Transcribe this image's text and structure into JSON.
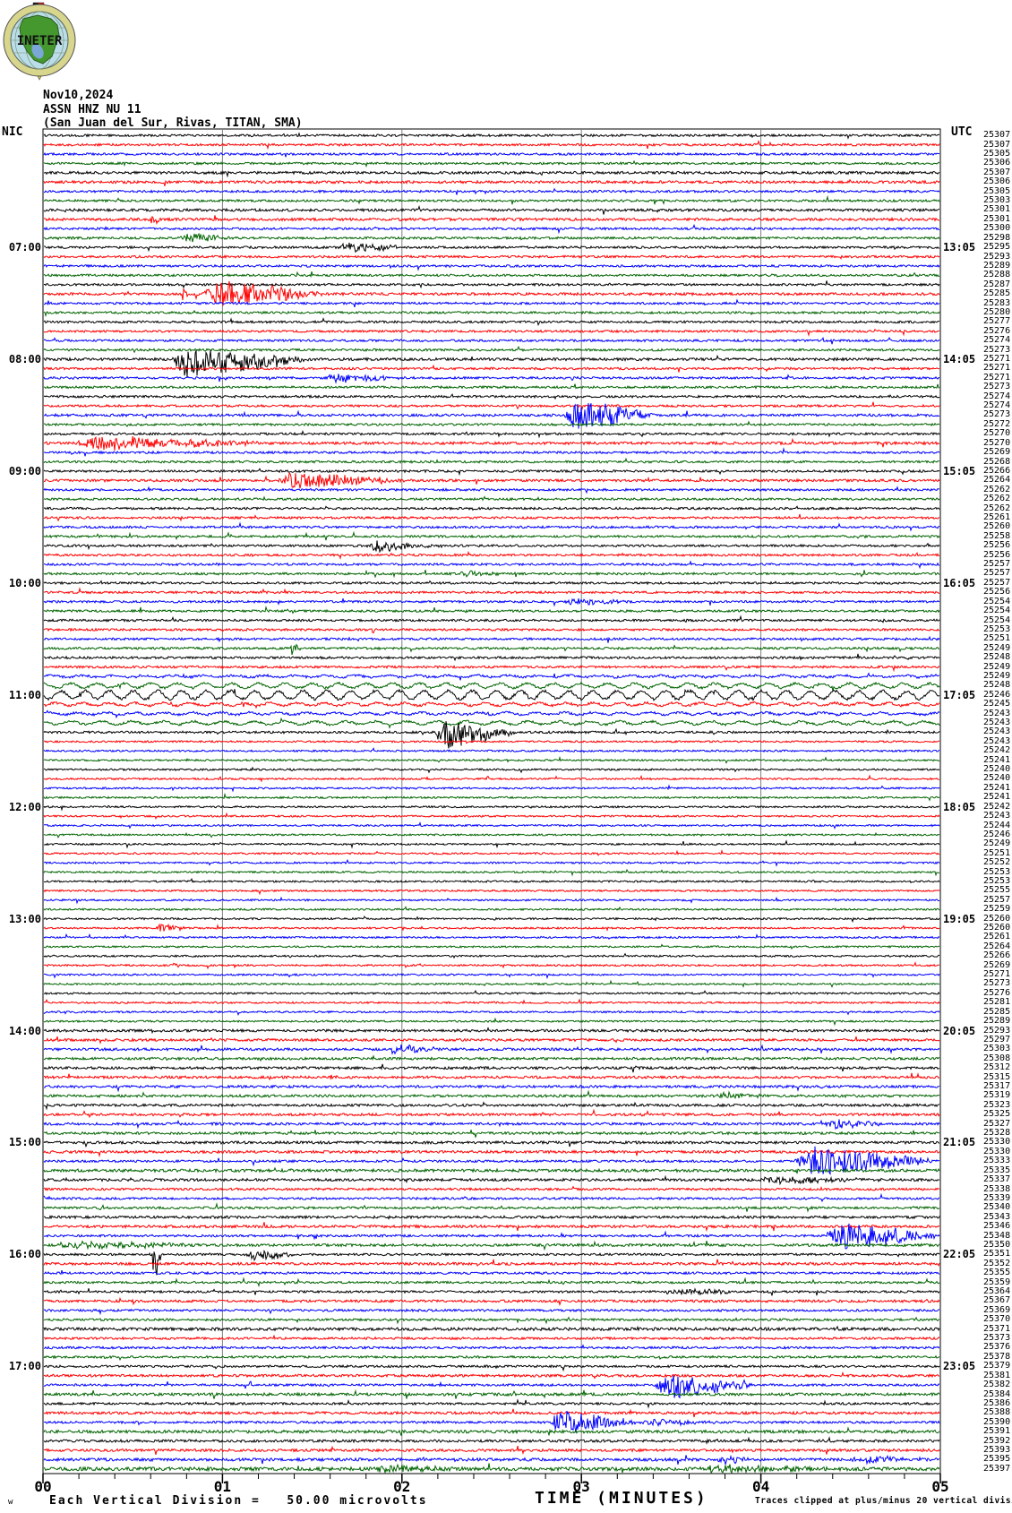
{
  "header": {
    "date": "Nov10,2024",
    "station": "ASSN HNZ NU 11",
    "location": "(San Juan del Sur, Rivas, TITAN, SMA)",
    "tz_left": "NIC",
    "tz_right": "UTC",
    "logo_text": "INETER"
  },
  "footer": {
    "left_mark": "w",
    "left": "Each Vertical Division =   50.00 microvolts",
    "xlabel": "TIME (MINUTES)",
    "right": "Traces clipped at plus/minus 20 vertical divisions"
  },
  "colors": {
    "trace_cycle": [
      "#000000",
      "#ff0000",
      "#0000ff",
      "#006400"
    ],
    "grid": "#7f7f7f",
    "border": "#000000",
    "logo_ring": "#d8d58d",
    "logo_sea": "#b9dde9",
    "logo_land": "#44982e",
    "logo_lake": "#7aa7d8",
    "logo_flag_black": "#111111",
    "logo_flag_red": "#cc1111",
    "logo_pointer": "#e8c83a"
  },
  "chart_data": {
    "type": "line",
    "subtype": "helicorder-seismogram",
    "title": "ASSN HNZ NU 11 (San Juan del Sur, Rivas, TITAN, SMA)",
    "xlabel": "TIME (MINUTES)",
    "x_axis_labels": [
      "00",
      "01",
      "02",
      "03",
      "04",
      "05"
    ],
    "x_range": [
      0,
      5
    ],
    "minor_ticks_per_major": 4,
    "rows": 144,
    "minutes_per_row": 5,
    "start_local": "06:00",
    "start_utc": "12:00",
    "color_cycle_meaning": "each line is 5 minutes; colors repeat black,red,blue,green",
    "left_time_labels": [
      "07:00",
      "08:00",
      "09:00",
      "10:00",
      "11:00",
      "12:00",
      "13:00",
      "14:00",
      "15:00",
      "16:00",
      "17:00"
    ],
    "right_time_labels": [
      "13:05",
      "14:05",
      "15:05",
      "16:05",
      "17:05",
      "18:05",
      "19:05",
      "20:05",
      "21:05",
      "22:05",
      "23:05"
    ],
    "label_first_row": 13,
    "label_row_step": 12,
    "row_values": [
      "25307",
      "25307",
      "25305",
      "25306",
      "25307",
      "25306",
      "25305",
      "25303",
      "25301",
      "25301",
      "25300",
      "25298",
      "25295",
      "25293",
      "25289",
      "25288",
      "25287",
      "25285",
      "25283",
      "25280",
      "25277",
      "25276",
      "25274",
      "25273",
      "25271",
      "25271",
      "25271",
      "25273",
      "25274",
      "25274",
      "25273",
      "25272",
      "25270",
      "25270",
      "25269",
      "25268",
      "25266",
      "25264",
      "25262",
      "25262",
      "25262",
      "25261",
      "25260",
      "25258",
      "25256",
      "25256",
      "25257",
      "25257",
      "25257",
      "25256",
      "25254",
      "25254",
      "25254",
      "25253",
      "25251",
      "25249",
      "25248",
      "25249",
      "25249",
      "25248",
      "25246",
      "25245",
      "25243",
      "25243",
      "25243",
      "25243",
      "25242",
      "25241",
      "25240",
      "25240",
      "25241",
      "25241",
      "25242",
      "25243",
      "25244",
      "25246",
      "25249",
      "25251",
      "25252",
      "25253",
      "25253",
      "25255",
      "25257",
      "25259",
      "25260",
      "25260",
      "25261",
      "25264",
      "25266",
      "25269",
      "25271",
      "25273",
      "25276",
      "25281",
      "25285",
      "25289",
      "25293",
      "25297",
      "25303",
      "25308",
      "25312",
      "25315",
      "25317",
      "25319",
      "25323",
      "25325",
      "25327",
      "25328",
      "25330",
      "25330",
      "25333",
      "25335",
      "25337",
      "25338",
      "25339",
      "25340",
      "25343",
      "25346",
      "25348",
      "25350",
      "25351",
      "25352",
      "25355",
      "25359",
      "25364",
      "25367",
      "25369",
      "25370",
      "25371",
      "25373",
      "25376",
      "25378",
      "25379",
      "25381",
      "25382",
      "25384",
      "25386",
      "25388",
      "25390",
      "25391",
      "25392",
      "25393",
      "25395",
      "25397"
    ],
    "events": [
      {
        "row": 10,
        "m0": 0.6,
        "m1": 0.66,
        "amp": 9,
        "bias": 0
      },
      {
        "row": 12,
        "m0": 0.76,
        "m1": 1.08,
        "amp": 6,
        "bias": 0
      },
      {
        "row": 13,
        "m0": 1.64,
        "m1": 2.02,
        "amp": 6,
        "bias": 0
      },
      {
        "row": 18,
        "m0": 0.77,
        "m1": 0.82,
        "amp": 8,
        "bias": 0
      },
      {
        "row": 18,
        "m0": 0.89,
        "m1": 1.58,
        "amp": 15,
        "bias": 0
      },
      {
        "row": 25,
        "m0": 0.71,
        "m1": 1.5,
        "amp": 17,
        "bias": -0.3
      },
      {
        "row": 27,
        "m0": 1.56,
        "m1": 2.02,
        "amp": 5,
        "bias": 0
      },
      {
        "row": 31,
        "m0": 2.9,
        "m1": 3.42,
        "amp": 18,
        "bias": 0
      },
      {
        "row": 34,
        "m0": 0.17,
        "m1": 1.25,
        "amp": 8,
        "bias": 0
      },
      {
        "row": 38,
        "m0": 1.3,
        "m1": 2.05,
        "amp": 9,
        "bias": 0
      },
      {
        "row": 45,
        "m0": 1.79,
        "m1": 2.25,
        "amp": 5,
        "bias": -0.2
      },
      {
        "row": 48,
        "m0": 2.3,
        "m1": 2.6,
        "amp": 3,
        "bias": 0
      },
      {
        "row": 51,
        "m0": 2.9,
        "m1": 3.3,
        "amp": 3,
        "bias": 0
      },
      {
        "row": 56,
        "m0": 1.38,
        "m1": 1.44,
        "amp": 9,
        "bias": 0
      },
      {
        "row": 65,
        "m0": 2.18,
        "m1": 2.65,
        "amp": 16,
        "bias": -0.2
      },
      {
        "row": 86,
        "m0": 0.63,
        "m1": 0.8,
        "amp": 5,
        "bias": 0
      },
      {
        "row": 90,
        "m0": 0.72,
        "m1": 0.78,
        "amp": 5,
        "bias": 0
      },
      {
        "row": 99,
        "m0": 1.9,
        "m1": 2.3,
        "amp": 5,
        "bias": 0
      },
      {
        "row": 104,
        "m0": 3.75,
        "m1": 4.05,
        "amp": 3.5,
        "bias": 0
      },
      {
        "row": 107,
        "m0": 4.35,
        "m1": 4.72,
        "amp": 5,
        "bias": 0
      },
      {
        "row": 111,
        "m0": 4.18,
        "m1": 5.0,
        "amp": 16,
        "bias": 0
      },
      {
        "row": 113,
        "m0": 3.95,
        "m1": 4.7,
        "amp": 4,
        "bias": 0
      },
      {
        "row": 119,
        "m0": 4.35,
        "m1": 5.0,
        "amp": 16,
        "bias": 0
      },
      {
        "row": 120,
        "m0": 0.05,
        "m1": 0.95,
        "amp": 4,
        "bias": 0
      },
      {
        "row": 121,
        "m0": 0.61,
        "m1": 0.66,
        "amp": 30,
        "bias": -0.8
      },
      {
        "row": 121,
        "m0": 1.13,
        "m1": 1.42,
        "amp": 6,
        "bias": -0.3
      },
      {
        "row": 125,
        "m0": 3.45,
        "m1": 3.92,
        "amp": 4,
        "bias": 0
      },
      {
        "row": 135,
        "m0": 3.4,
        "m1": 3.98,
        "amp": 13,
        "bias": -0.2
      },
      {
        "row": 139,
        "m0": 2.82,
        "m1": 3.32,
        "amp": 14,
        "bias": 0
      },
      {
        "row": 139,
        "m0": 3.32,
        "m1": 3.78,
        "amp": 4,
        "bias": 0
      },
      {
        "row": 143,
        "m0": 3.74,
        "m1": 3.96,
        "amp": 5,
        "bias": 0
      },
      {
        "row": 143,
        "m0": 4.5,
        "m1": 4.95,
        "amp": 4,
        "bias": 0
      },
      {
        "row": 144,
        "m0": 1.85,
        "m1": 2.35,
        "amp": 4,
        "bias": 0
      },
      {
        "row": 144,
        "m0": 3.6,
        "m1": 4.45,
        "amp": 4,
        "bias": 0
      }
    ],
    "waves": [
      {
        "row": 59,
        "amp": 1.0,
        "period": 34
      },
      {
        "row": 60,
        "amp": 2.5,
        "period": 30
      },
      {
        "row": 61,
        "amp": 4.5,
        "period": 27
      },
      {
        "row": 62,
        "amp": 1.5,
        "period": 30
      },
      {
        "row": 63,
        "amp": 1.2,
        "period": 32
      },
      {
        "row": 64,
        "amp": 1.8,
        "period": 34
      }
    ],
    "noise": {
      "default": 1.25,
      "ranges": [
        [
          66,
          96,
          1.0
        ],
        [
          97,
          108,
          1.4
        ]
      ],
      "rows": {
        "5": 1.5,
        "6": 1.5,
        "9": 1.45,
        "10": 1.5,
        "18": 1.45,
        "25": 1.5,
        "31": 1.4,
        "34": 1.5,
        "38": 1.4,
        "61": 1.5,
        "109": 1.5,
        "110": 1.5,
        "112": 1.6,
        "113": 1.45,
        "117": 1.4,
        "118": 1.5,
        "120": 1.5,
        "122": 1.5,
        "126": 1.4,
        "129": 1.65,
        "134": 1.45,
        "136": 1.55,
        "138": 1.45,
        "140": 1.65,
        "141": 1.45,
        "142": 1.45,
        "143": 1.6,
        "144": 2.0
      }
    }
  }
}
